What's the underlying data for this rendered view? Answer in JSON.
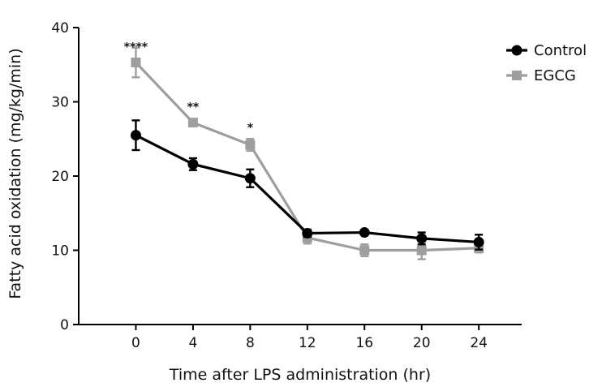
{
  "chart_data": {
    "type": "line",
    "xlabel": "Time after LPS administration (hr)",
    "ylabel": "Fatty acid oxidation (mg/kg/min)",
    "x": [
      0,
      4,
      8,
      12,
      16,
      20,
      24
    ],
    "xlim": [
      -4,
      27
    ],
    "ylim": [
      0,
      40
    ],
    "xticks": [
      0,
      4,
      8,
      12,
      16,
      20,
      24
    ],
    "yticks": [
      0,
      10,
      20,
      30,
      40
    ],
    "grid": false,
    "legend_position": "top-right",
    "series": [
      {
        "name": "Control",
        "color": "#000000",
        "marker": "circle",
        "values": [
          25.5,
          21.6,
          19.7,
          12.3,
          12.4,
          11.6,
          11.1
        ],
        "errors": [
          2.0,
          0.8,
          1.2,
          0.5,
          0.3,
          0.8,
          1.0
        ]
      },
      {
        "name": "EGCG",
        "color": "#9e9e9e",
        "marker": "square",
        "values": [
          35.3,
          27.2,
          24.2,
          11.7,
          10.0,
          10.0,
          10.3
        ],
        "errors": [
          2.0,
          0.3,
          0.8,
          0.8,
          0.8,
          1.2,
          0.6
        ]
      }
    ],
    "annotations": [
      {
        "x": 0,
        "y": 36.9,
        "text": "****"
      },
      {
        "x": 4,
        "y": 28.8,
        "text": "**"
      },
      {
        "x": 8,
        "y": 26.0,
        "text": "*"
      }
    ]
  }
}
